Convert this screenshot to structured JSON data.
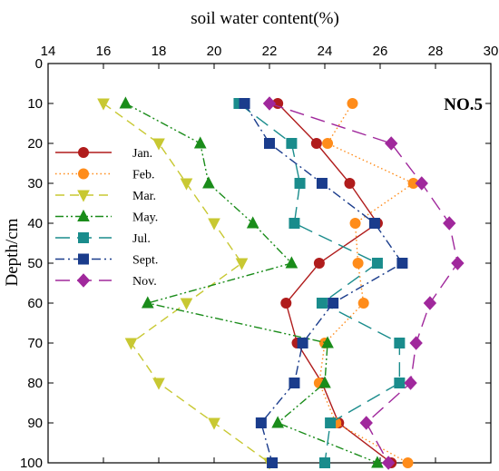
{
  "chart_data": {
    "type": "line",
    "orientation": "depth-profile",
    "xlabel": "soil water content(%)",
    "ylabel": "Depth/cm",
    "xlim": [
      14,
      30
    ],
    "ylim": [
      0,
      100
    ],
    "x_ticks": [
      14,
      16,
      18,
      20,
      22,
      24,
      26,
      28,
      30
    ],
    "y_ticks": [
      0,
      10,
      20,
      30,
      40,
      50,
      60,
      70,
      80,
      90,
      100
    ],
    "y_inverted": true,
    "x_axis_position": "top",
    "grid": false,
    "legend_position": "left",
    "annotation": "NO.5",
    "depths": [
      10,
      20,
      30,
      40,
      50,
      60,
      70,
      80,
      90,
      100
    ],
    "series": [
      {
        "name": "Jan.",
        "color": "#b01c1c",
        "dash": "solid",
        "marker": "circle",
        "values": [
          22.3,
          23.7,
          24.9,
          25.9,
          23.8,
          22.6,
          23.0,
          23.9,
          24.5,
          26.4
        ]
      },
      {
        "name": "Feb.",
        "color": "#ff8c1a",
        "dash": "dotted",
        "marker": "circle",
        "values": [
          25.0,
          24.1,
          27.2,
          25.1,
          25.2,
          25.4,
          24.0,
          23.8,
          24.4,
          27.0
        ]
      },
      {
        "name": "Mar.",
        "color": "#c8c832",
        "dash": "dashed",
        "marker": "triangle-down",
        "values": [
          16.0,
          18.0,
          19.0,
          20.0,
          21.0,
          19.0,
          17.0,
          18.0,
          20.0,
          22.0
        ]
      },
      {
        "name": "May.",
        "color": "#1a8c1a",
        "dash": "dashdotdot",
        "marker": "triangle-up",
        "values": [
          16.8,
          19.5,
          19.8,
          21.4,
          22.8,
          17.6,
          24.1,
          24.0,
          22.3,
          25.9
        ]
      },
      {
        "name": "Jul.",
        "color": "#1a8c8c",
        "dash": "longdash",
        "marker": "square",
        "values": [
          20.9,
          22.8,
          23.1,
          22.9,
          25.9,
          23.9,
          26.7,
          26.7,
          24.2,
          24.0
        ]
      },
      {
        "name": "Sept.",
        "color": "#1a3c8c",
        "dash": "dashdot",
        "marker": "square",
        "values": [
          21.1,
          22.0,
          23.9,
          25.8,
          26.8,
          24.3,
          23.2,
          22.9,
          21.7,
          22.1
        ]
      },
      {
        "name": "Nov.",
        "color": "#a0289c",
        "dash": "longdash",
        "marker": "diamond",
        "values": [
          22.0,
          26.4,
          27.5,
          28.5,
          28.8,
          27.8,
          27.3,
          27.1,
          25.5,
          26.3
        ]
      }
    ]
  }
}
